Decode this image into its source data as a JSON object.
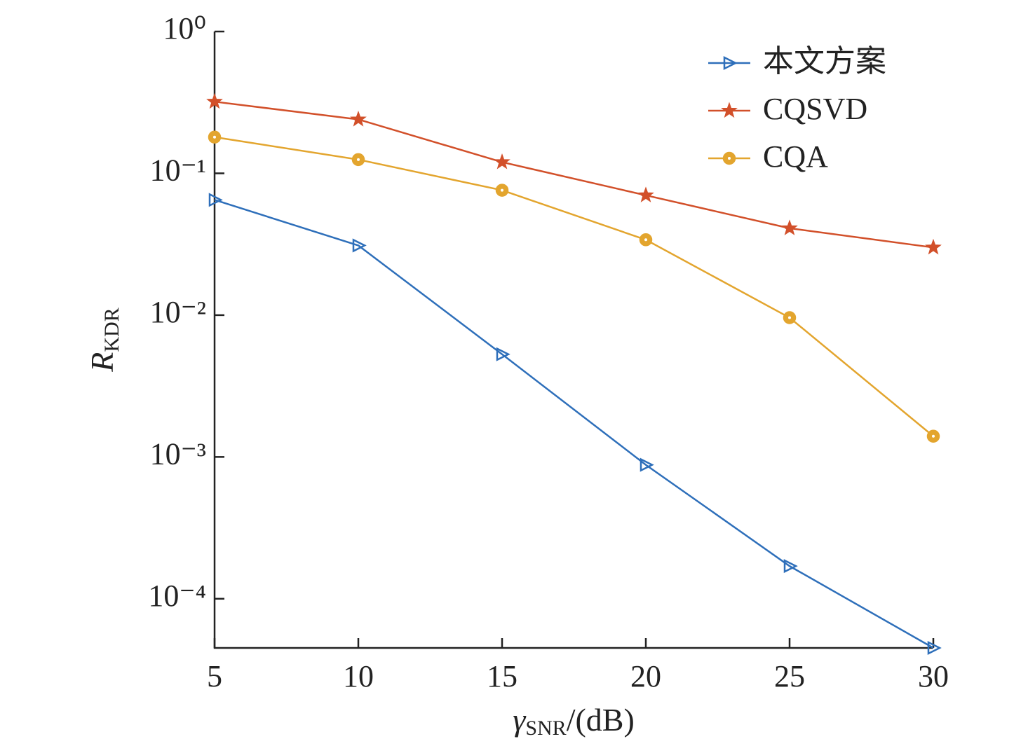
{
  "chart_data": {
    "type": "line",
    "x_label": {
      "main": "γ",
      "sub": "SNR",
      "suffix": "/(dB)"
    },
    "y_label": {
      "main": "R",
      "sub": "KDR"
    },
    "x": [
      5,
      10,
      15,
      20,
      25,
      30
    ],
    "xlim": [
      5,
      30
    ],
    "xticks": [
      5,
      10,
      15,
      20,
      25,
      30
    ],
    "ylim": [
      4.5e-05,
      1
    ],
    "log_y": true,
    "yticks": [
      {
        "value": 1,
        "label": "10⁰"
      },
      {
        "value": 0.1,
        "label": "10⁻¹"
      },
      {
        "value": 0.01,
        "label": "10⁻²"
      },
      {
        "value": 0.001,
        "label": "10⁻³"
      },
      {
        "value": 0.0001,
        "label": "10⁻⁴"
      }
    ],
    "legend": "upper right",
    "series": [
      {
        "name": "本文方案",
        "color": "#2e6fba",
        "marker": "triangle-right",
        "values": [
          0.065,
          0.031,
          0.0053,
          0.00088,
          0.00017,
          4.5e-05
        ]
      },
      {
        "name": "CQSVD",
        "color": "#d2502a",
        "marker": "star",
        "values": [
          0.32,
          0.24,
          0.12,
          0.07,
          0.041,
          0.03
        ]
      },
      {
        "name": "CQA",
        "color": "#e3a52e",
        "marker": "circle",
        "values": [
          0.18,
          0.125,
          0.076,
          0.034,
          0.0096,
          0.0014
        ]
      }
    ]
  }
}
